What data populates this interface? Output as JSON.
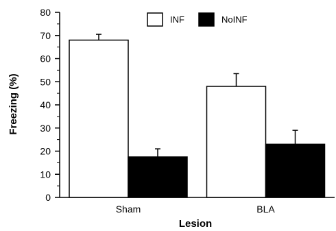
{
  "chart_data": {
    "type": "bar",
    "title": "",
    "xlabel": "Lesion",
    "ylabel": "Freezing (%)",
    "categories": [
      "Sham",
      "BLA"
    ],
    "ylim": [
      0,
      80
    ],
    "yticks": [
      0,
      10,
      20,
      30,
      40,
      50,
      60,
      70,
      80
    ],
    "grid": false,
    "legend_position": "top-center",
    "series": [
      {
        "name": "INF",
        "values": [
          68,
          48
        ],
        "errors": [
          2.5,
          5.5
        ],
        "fill": "#ffffff",
        "stroke": "#000000"
      },
      {
        "name": "NoINF",
        "values": [
          17.5,
          23
        ],
        "errors": [
          3.5,
          6
        ],
        "fill": "#000000",
        "stroke": "#000000"
      }
    ]
  }
}
